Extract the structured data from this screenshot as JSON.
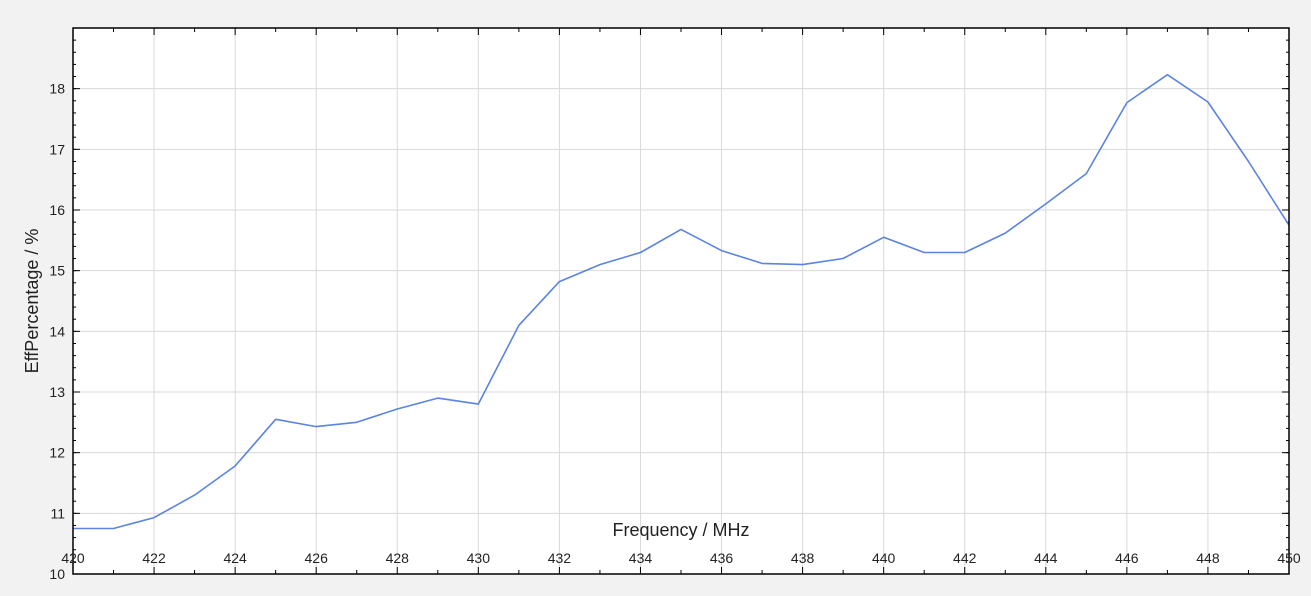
{
  "chart_data": {
    "type": "line",
    "title": "",
    "xlabel": "Frequency / MHz",
    "ylabel": "EffPercentage / %",
    "xlim": [
      420,
      450
    ],
    "ylim": [
      10,
      19
    ],
    "x_ticks": [
      420,
      422,
      424,
      426,
      428,
      430,
      432,
      434,
      436,
      438,
      440,
      442,
      444,
      446,
      448,
      450
    ],
    "y_ticks": [
      10,
      11,
      12,
      13,
      14,
      15,
      16,
      17,
      18
    ],
    "grid": true,
    "legend": "none",
    "line_color": "#5b84e0",
    "series": [
      {
        "x": [
          420,
          421,
          422,
          423,
          424,
          425,
          426,
          427,
          428,
          429,
          430,
          431,
          432,
          433,
          434,
          435,
          436,
          437,
          438,
          439,
          440,
          441,
          442,
          443,
          444,
          445,
          446,
          447,
          448,
          449,
          450
        ],
        "y": [
          10.75,
          10.75,
          10.93,
          11.3,
          11.78,
          12.55,
          12.43,
          12.5,
          12.72,
          12.9,
          12.8,
          14.1,
          14.82,
          15.1,
          15.3,
          15.68,
          15.33,
          15.12,
          15.1,
          15.2,
          15.55,
          15.3,
          15.3,
          15.62,
          16.1,
          16.6,
          17.77,
          18.23,
          17.78,
          16.8,
          15.75
        ]
      }
    ]
  }
}
